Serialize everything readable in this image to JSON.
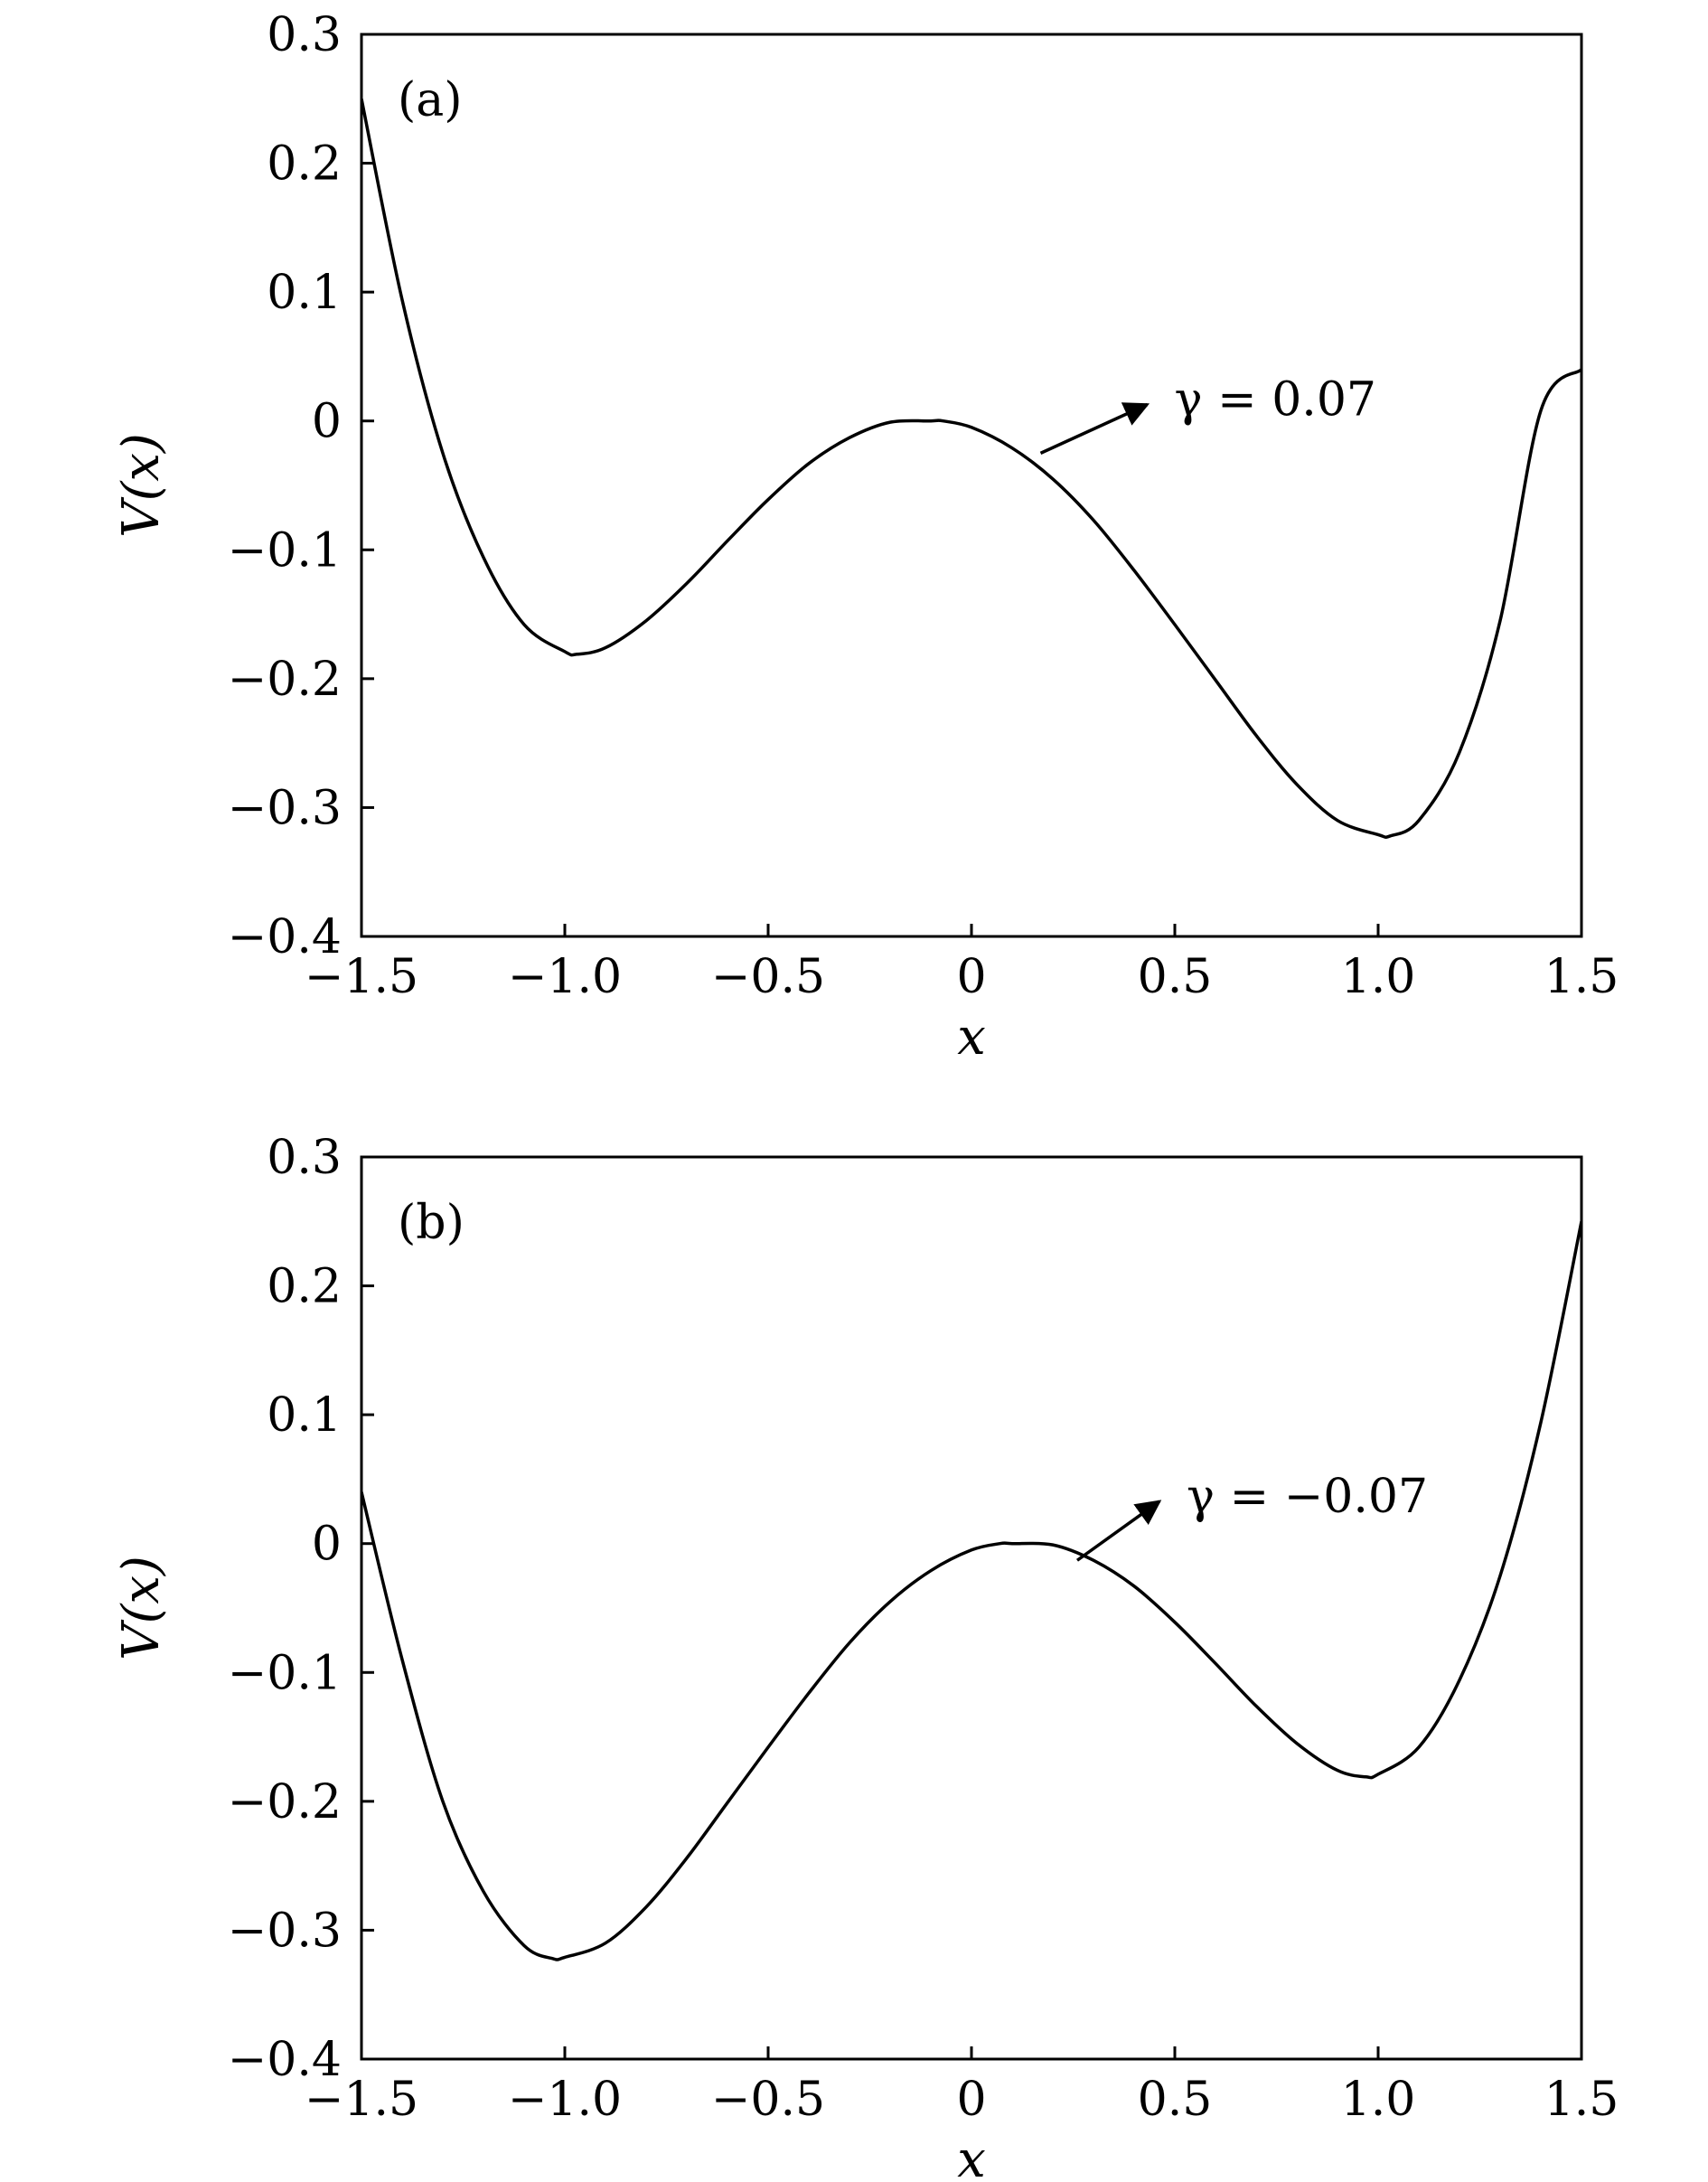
{
  "chart_data": [
    {
      "type": "line",
      "panel_label": "(a)",
      "xlabel": "x",
      "ylabel": "V(x)",
      "xlim": [
        -1.5,
        1.5
      ],
      "ylim": [
        -0.4,
        0.3
      ],
      "xticks": [
        -1.5,
        -1.0,
        -0.5,
        0,
        0.5,
        1.0,
        1.5
      ],
      "xtick_labels": [
        "−1.5",
        "−1.0",
        "−0.5",
        "0",
        "0.5",
        "1.0",
        "1.5"
      ],
      "yticks": [
        0.3,
        0.2,
        0.1,
        0,
        -0.1,
        -0.2,
        -0.3,
        -0.4
      ],
      "ytick_labels": [
        "0.3",
        "0.2",
        "0.1",
        "0",
        "−0.1",
        "−0.2",
        "−0.3",
        "−0.4"
      ],
      "grid": false,
      "series": [
        {
          "x": [
            -1.5,
            -1.4,
            -1.3,
            -1.2,
            -1.1,
            -1.0,
            -0.97,
            -0.9,
            -0.8,
            -0.7,
            -0.6,
            -0.5,
            -0.4,
            -0.3,
            -0.2,
            -0.1,
            -0.07,
            0.0,
            0.1,
            0.2,
            0.3,
            0.4,
            0.5,
            0.6,
            0.7,
            0.8,
            0.9,
            1.0,
            1.03,
            1.1,
            1.2,
            1.3,
            1.4,
            1.5
          ],
          "y": [
            0.25,
            0.094,
            -0.025,
            -0.106,
            -0.158,
            -0.179,
            -0.181,
            -0.176,
            -0.155,
            -0.126,
            -0.093,
            -0.061,
            -0.033,
            -0.013,
            -0.001,
            0.0,
            0.0,
            -0.005,
            -0.021,
            -0.045,
            -0.077,
            -0.116,
            -0.158,
            -0.201,
            -0.244,
            -0.282,
            -0.31,
            -0.321,
            -0.322,
            -0.31,
            -0.257,
            -0.155,
            0.008,
            0.04
          ]
        }
      ],
      "annotation": {
        "text": "γ = 0.07",
        "target": [
          0.17,
          -0.025
        ],
        "text_pos": [
          0.45,
          0.017
        ]
      }
    },
    {
      "type": "line",
      "panel_label": "(b)",
      "xlabel": "x",
      "ylabel": "V(x)",
      "xlim": [
        -1.5,
        1.5
      ],
      "ylim": [
        -0.4,
        0.3
      ],
      "xticks": [
        -1.5,
        -1.0,
        -0.5,
        0,
        0.5,
        1.0,
        1.5
      ],
      "xtick_labels": [
        "−1.5",
        "−1.0",
        "−0.5",
        "0",
        "0.5",
        "1.0",
        "1.5"
      ],
      "yticks": [
        0.3,
        0.2,
        0.1,
        0,
        -0.1,
        -0.2,
        -0.3,
        -0.4
      ],
      "ytick_labels": [
        "0.3",
        "0.2",
        "0.1",
        "0",
        "−0.1",
        "−0.2",
        "−0.3",
        "−0.4"
      ],
      "grid": false,
      "series": [
        {
          "x": [
            -1.5,
            -1.4,
            -1.3,
            -1.2,
            -1.1,
            -1.03,
            -1.0,
            -0.9,
            -0.8,
            -0.7,
            -0.6,
            -0.5,
            -0.4,
            -0.3,
            -0.2,
            -0.1,
            0.0,
            0.07,
            0.1,
            0.2,
            0.3,
            0.4,
            0.5,
            0.6,
            0.7,
            0.8,
            0.9,
            0.97,
            1.0,
            1.1,
            1.2,
            1.3,
            1.4,
            1.5
          ],
          "y": [
            0.04,
            -0.09,
            -0.2,
            -0.27,
            -0.312,
            -0.322,
            -0.321,
            -0.31,
            -0.282,
            -0.244,
            -0.201,
            -0.158,
            -0.116,
            -0.077,
            -0.045,
            -0.021,
            -0.005,
            0.0,
            0.0,
            -0.001,
            -0.013,
            -0.033,
            -0.061,
            -0.093,
            -0.126,
            -0.155,
            -0.176,
            -0.181,
            -0.179,
            -0.158,
            -0.106,
            -0.025,
            0.094,
            0.25
          ]
        }
      ],
      "annotation": {
        "text": "γ = −0.07",
        "target": [
          0.26,
          -0.013
        ],
        "text_pos": [
          0.48,
          0.037
        ]
      }
    }
  ]
}
